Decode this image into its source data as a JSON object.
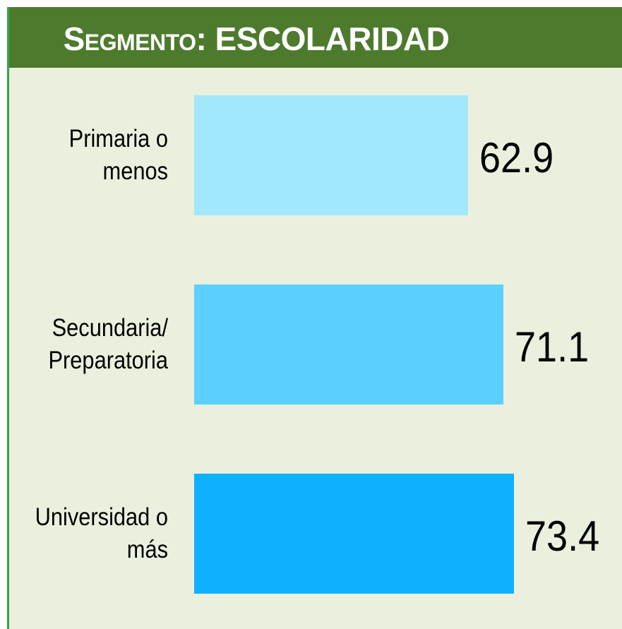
{
  "chart_data": {
    "type": "bar",
    "orientation": "horizontal",
    "title": "Segmento: ESCOLARIDAD",
    "categories": [
      "Primaria o\nmenos",
      "Secundaria/\nPreparatoria",
      "Universidad o\nmás"
    ],
    "series": [
      {
        "name": null,
        "colors": [
          "#a2e8fd",
          "#5bd0fe",
          "#0fb0fd"
        ],
        "values": [
          62.9,
          71.1,
          73.4
        ]
      }
    ],
    "xlim": [
      0,
      100
    ]
  }
}
